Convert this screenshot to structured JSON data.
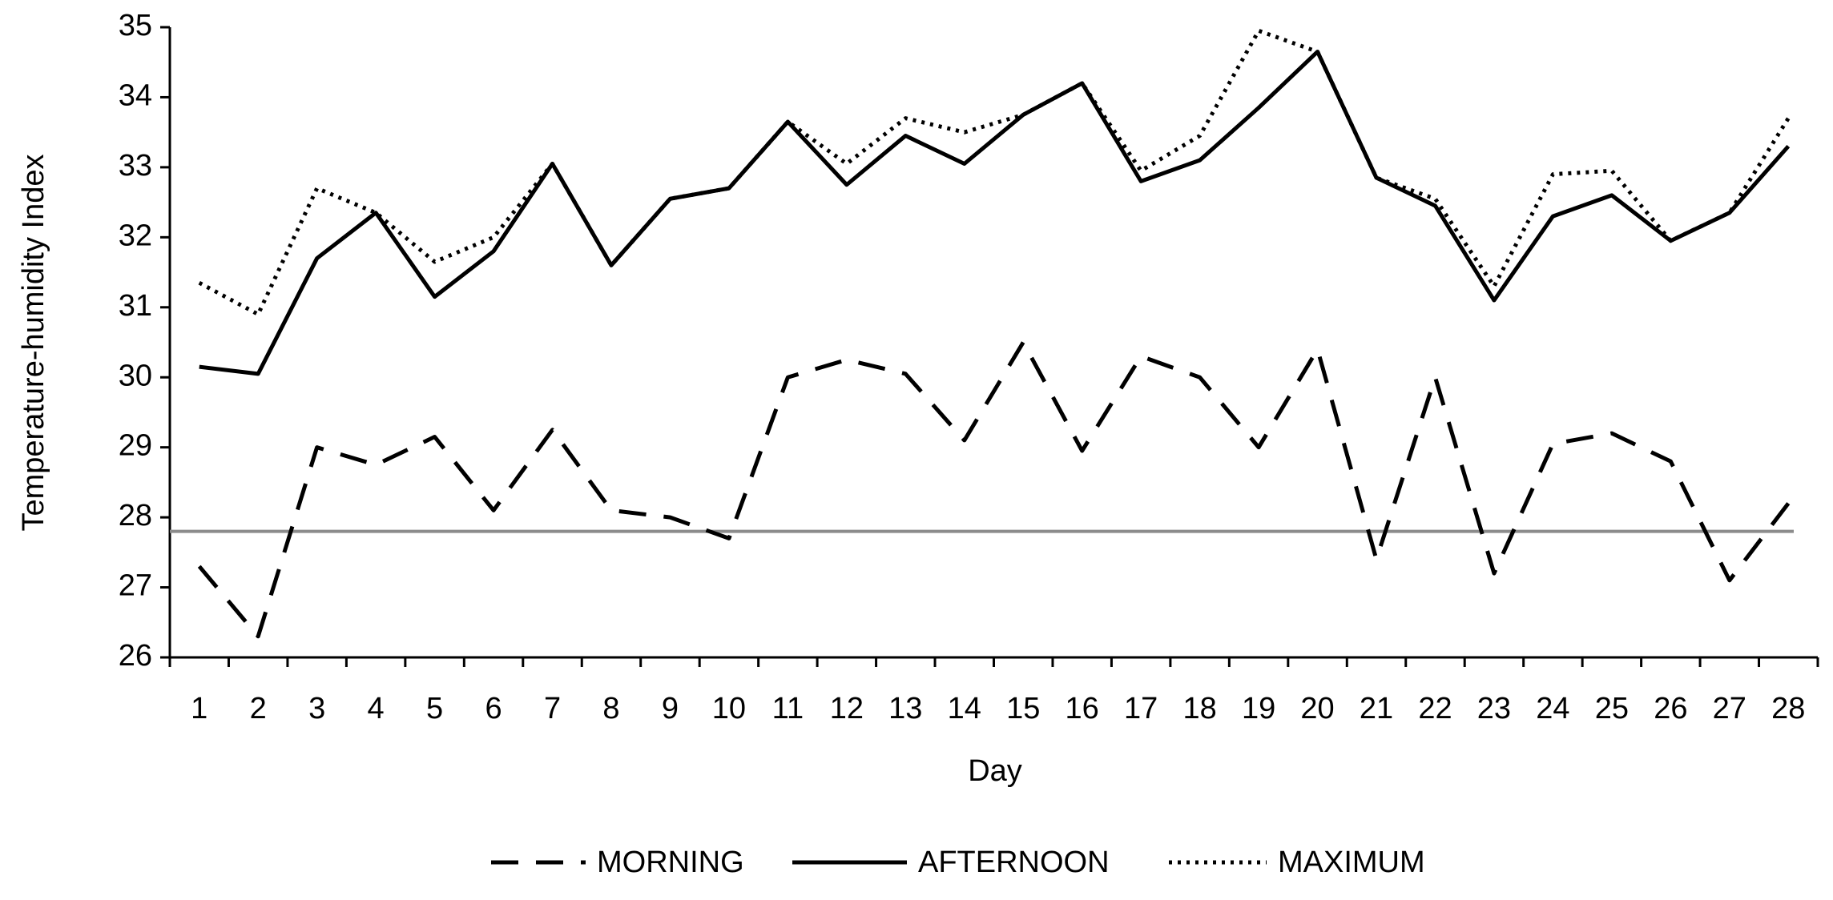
{
  "chart_data": {
    "type": "line",
    "x_label": "Day",
    "y_label": "Temperature-humidity Index",
    "categories": [
      "1",
      "2",
      "3",
      "4",
      "5",
      "6",
      "7",
      "8",
      "9",
      "10",
      "11",
      "12",
      "13",
      "14",
      "15",
      "16",
      "17",
      "18",
      "19",
      "20",
      "21",
      "22",
      "23",
      "24",
      "25",
      "26",
      "27",
      "28"
    ],
    "series": [
      {
        "name": "MORNING",
        "color": "#000000",
        "line_style": "dashed",
        "values": [
          27.3,
          26.3,
          29.0,
          28.75,
          29.15,
          28.1,
          29.25,
          28.1,
          28.0,
          27.7,
          30.0,
          30.25,
          30.05,
          29.1,
          30.5,
          28.95,
          30.3,
          30.0,
          29.0,
          30.4,
          27.4,
          30.0,
          27.2,
          29.05,
          29.2,
          28.8,
          27.1,
          28.2
        ]
      },
      {
        "name": "AFTERNOON",
        "color": "#000000",
        "line_style": "solid",
        "values": [
          30.15,
          30.05,
          31.7,
          32.35,
          31.15,
          31.8,
          33.05,
          31.6,
          32.55,
          32.7,
          33.65,
          32.75,
          33.45,
          33.05,
          33.75,
          34.2,
          32.8,
          33.1,
          33.85,
          34.65,
          32.85,
          32.45,
          31.1,
          32.3,
          32.6,
          31.95,
          32.35,
          33.3
        ]
      },
      {
        "name": "MAXIMUM",
        "color": "#000000",
        "line_style": "dotted",
        "values": [
          31.35,
          30.9,
          32.7,
          32.35,
          31.65,
          32.0,
          33.05,
          31.6,
          32.55,
          32.7,
          33.65,
          33.05,
          33.7,
          33.5,
          33.75,
          34.2,
          32.95,
          33.45,
          34.95,
          34.65,
          32.85,
          32.55,
          31.3,
          32.9,
          32.95,
          31.95,
          32.35,
          33.7
        ]
      }
    ],
    "reference_line": {
      "value": 27.8,
      "color": "#8c8c8c"
    },
    "ylim": [
      26,
      35
    ],
    "yticks": [
      26,
      27,
      28,
      29,
      30,
      31,
      32,
      33,
      34,
      35
    ],
    "grid": false,
    "legend": "bottom"
  }
}
